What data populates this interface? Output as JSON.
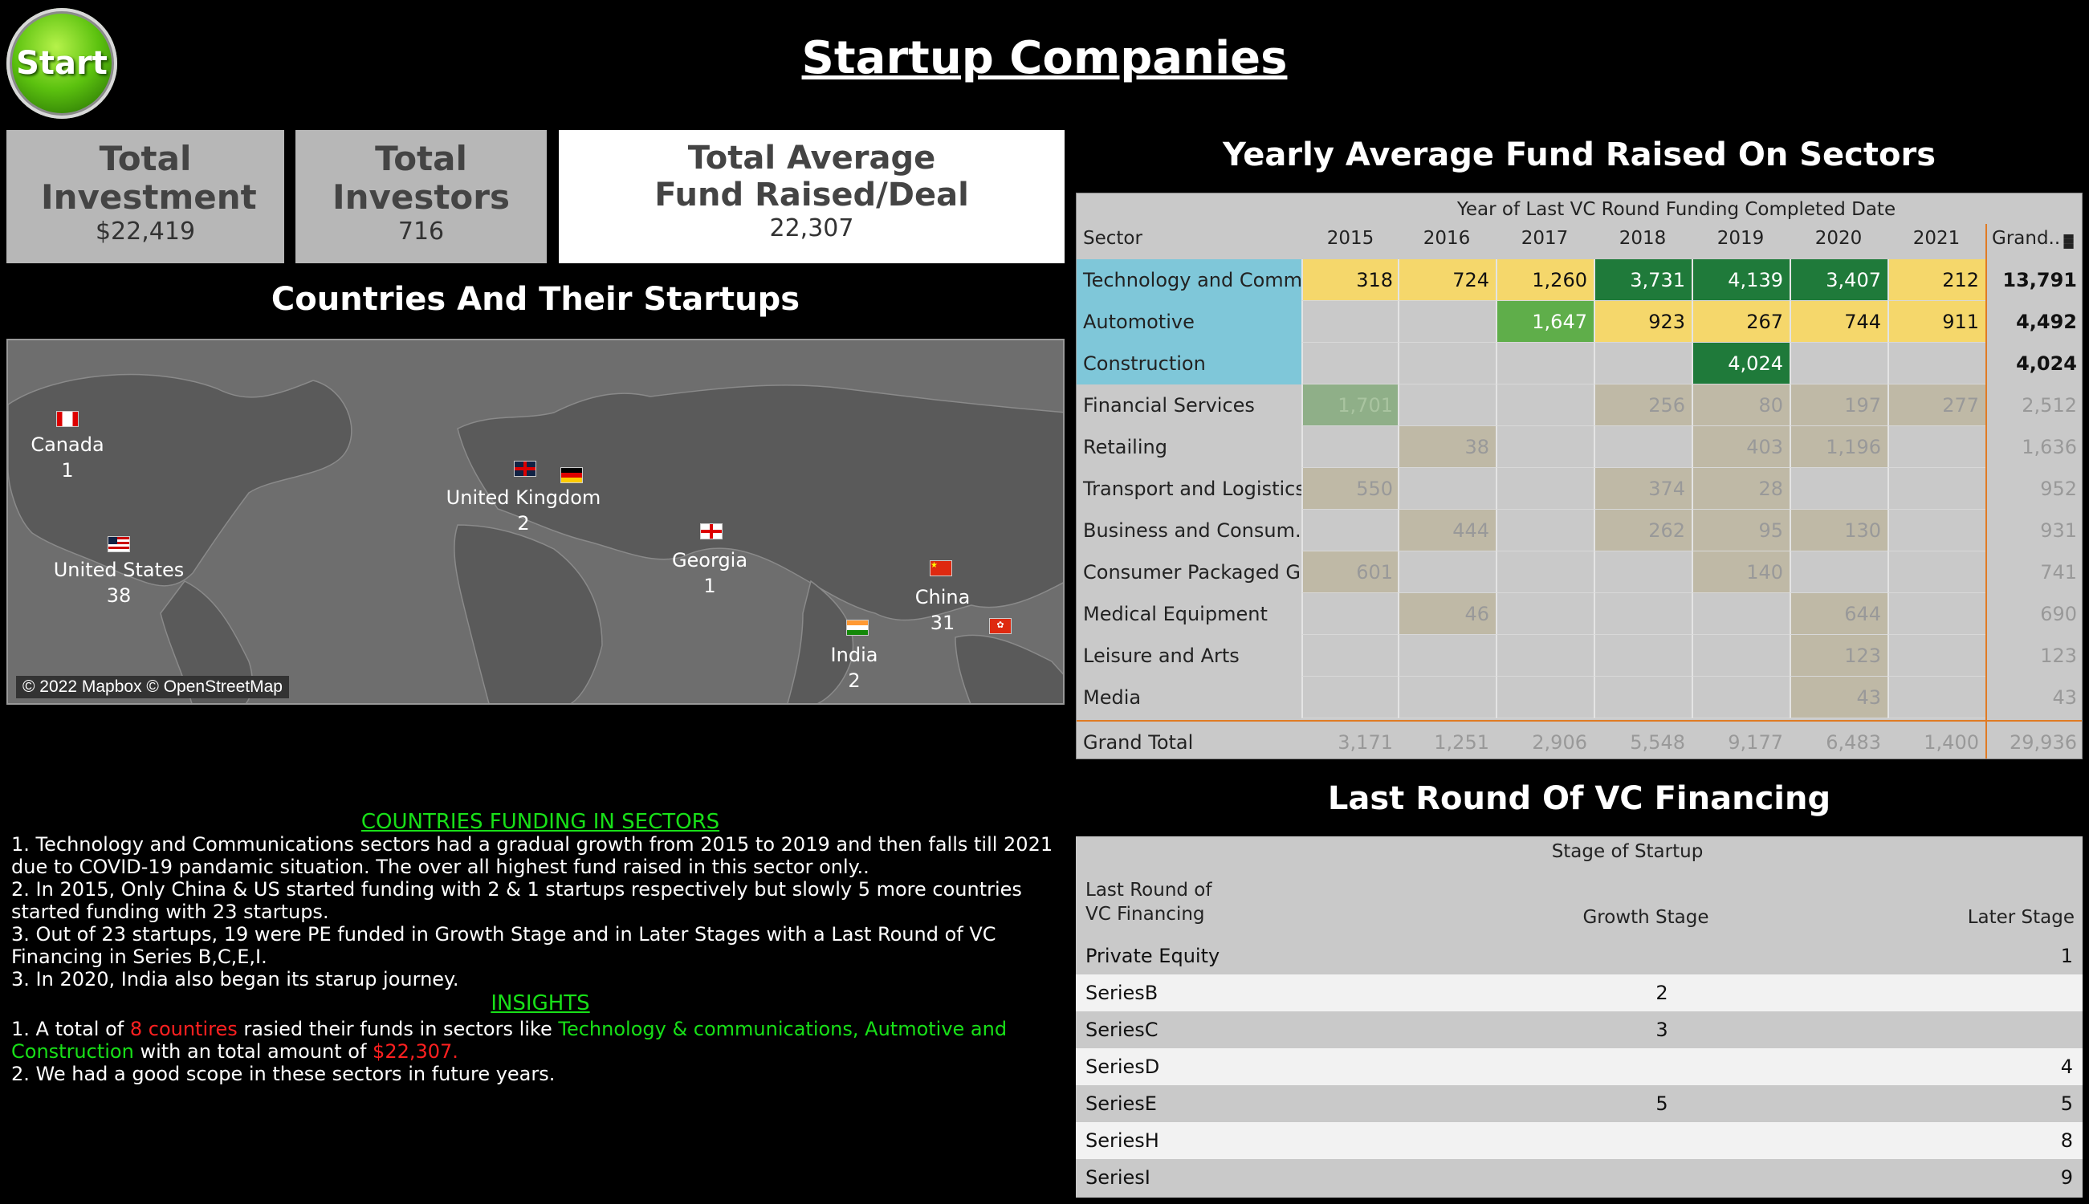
{
  "start_label": "Start",
  "title": "Startup Companies",
  "kpis": [
    {
      "title": "Total Investment",
      "value": "$22,419"
    },
    {
      "title": "Total Investors",
      "value": "716"
    },
    {
      "title": "Total Average Fund Raised/Deal",
      "value": "22,307"
    }
  ],
  "map": {
    "title": "Countries And Their Startups",
    "credit": "© 2022 Mapbox © OpenStreetMap",
    "countries": [
      {
        "name": "Canada",
        "count": "1"
      },
      {
        "name": "United Kingdom",
        "count": "2"
      },
      {
        "name": "United States",
        "count": "38"
      },
      {
        "name": "Georgia",
        "count": "1"
      },
      {
        "name": "China",
        "count": "31"
      },
      {
        "name": "India",
        "count": "2"
      }
    ]
  },
  "notes": {
    "title1": "COUNTRIES FUNDING IN SECTORS",
    "lines1": [
      "1. Technology and Communications sectors had a gradual growth from 2015 to 2019 and then falls till 2021 due to COVID-19 pandamic situation. The over all highest fund raised in this sector only..",
      "2. In 2015, Only China & US started funding with 2 & 1 startups respectively but slowly 5 more countries started funding with 23 startups.",
      "3. Out of 23 startups, 19 were PE funded in Growth Stage and in Later Stages with a Last Round of VC Financing in Series B,C,E,I.",
      "3. In 2020, India also began its starup journey."
    ],
    "title2": "INSIGHTS",
    "ins1_a": "1. A total of ",
    "ins1_b": "8 countires",
    "ins1_c": " rasied their funds in sectors like ",
    "ins1_d": "Technology & communications, Autmotive and Construction",
    "ins1_e": " with an total amount of ",
    "ins1_f": "$22,307.",
    "ins2": "2. We had a good scope in these sectors in future years."
  },
  "sector_table": {
    "title": "Yearly Average Fund Raised On Sectors",
    "col_group": "Year of Last VC Round Funding Completed Date",
    "row_header": "Sector",
    "years": [
      "2015",
      "2016",
      "2017",
      "2018",
      "2019",
      "2020",
      "2021"
    ],
    "grand_label": "Grand..",
    "rows": [
      {
        "sector": "Technology and Comm..",
        "values": [
          "318",
          "724",
          "1,260",
          "3,731",
          "4,139",
          "3,407",
          "212"
        ],
        "total": "13,791"
      },
      {
        "sector": "Automotive",
        "values": [
          "",
          "",
          "1,647",
          "923",
          "267",
          "744",
          "911"
        ],
        "total": "4,492"
      },
      {
        "sector": "Construction",
        "values": [
          "",
          "",
          "",
          "",
          "4,024",
          "",
          ""
        ],
        "total": "4,024"
      },
      {
        "sector": "Financial Services",
        "values": [
          "1,701",
          "",
          "",
          "256",
          "80",
          "197",
          "277"
        ],
        "total": "2,512"
      },
      {
        "sector": "Retailing",
        "values": [
          "",
          "38",
          "",
          "",
          "403",
          "1,196",
          ""
        ],
        "total": "1,636"
      },
      {
        "sector": "Transport and Logistics",
        "values": [
          "550",
          "",
          "",
          "374",
          "28",
          "",
          ""
        ],
        "total": "952"
      },
      {
        "sector": "Business and Consum..",
        "values": [
          "",
          "444",
          "",
          "262",
          "95",
          "130",
          ""
        ],
        "total": "931"
      },
      {
        "sector": "Consumer Packaged G..",
        "values": [
          "601",
          "",
          "",
          "",
          "140",
          "",
          ""
        ],
        "total": "741"
      },
      {
        "sector": "Medical Equipment",
        "values": [
          "",
          "46",
          "",
          "",
          "",
          "644",
          ""
        ],
        "total": "690"
      },
      {
        "sector": "Leisure and Arts",
        "values": [
          "",
          "",
          "",
          "",
          "",
          "123",
          ""
        ],
        "total": "123"
      },
      {
        "sector": "Media",
        "values": [
          "",
          "",
          "",
          "",
          "",
          "43",
          ""
        ],
        "total": "43"
      }
    ],
    "grand_total_label": "Grand Total",
    "grand_totals": [
      "3,171",
      "1,251",
      "2,906",
      "5,548",
      "9,177",
      "6,483",
      "1,400"
    ],
    "grand_grand_total": "29,936"
  },
  "vc_table": {
    "title": "Last Round Of VC Financing",
    "group_header": "Stage of Startup",
    "row_header_1": "Last Round of",
    "row_header_2": "VC Financing",
    "col1": "Growth Stage",
    "col2": "Later Stage",
    "rows": [
      {
        "label": "Private Equity",
        "growth": "",
        "later": "1"
      },
      {
        "label": "SeriesB",
        "growth": "2",
        "later": ""
      },
      {
        "label": "SeriesC",
        "growth": "3",
        "later": ""
      },
      {
        "label": "SeriesD",
        "growth": "",
        "later": "4"
      },
      {
        "label": "SeriesE",
        "growth": "5",
        "later": "5"
      },
      {
        "label": "SeriesH",
        "growth": "",
        "later": "8"
      },
      {
        "label": "SeriesI",
        "growth": "",
        "later": "9"
      }
    ]
  },
  "colors": {
    "highlight_yellow": "#f5d76b",
    "dark_green": "#1f7a3a",
    "mid_green": "#5fae4a",
    "row_highlight": "#7fc7d9",
    "accent_orange": "#e07b24"
  }
}
